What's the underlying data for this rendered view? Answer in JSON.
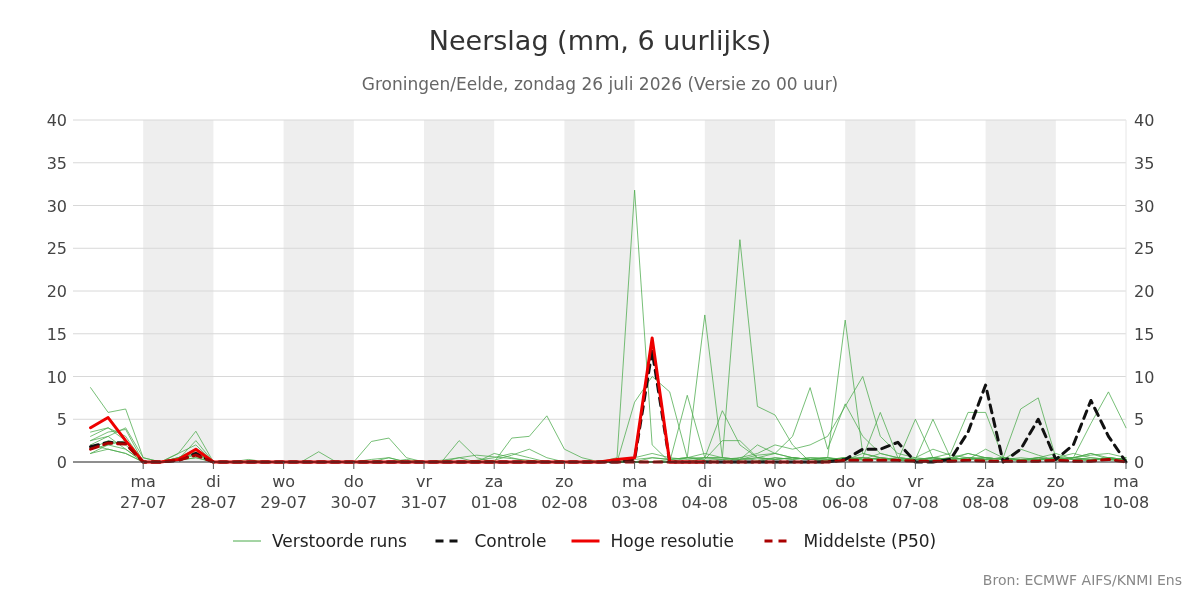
{
  "chart_data": {
    "type": "line",
    "title": "Neerslag (mm, 6 uurlijks)",
    "subtitle": "Groningen/Eelde, zondag 26 juli 2026 (Versie zo 00 uur)",
    "x": [
      "2026-07-26T06:00",
      "2026-07-26T12:00",
      "2026-07-26T18:00",
      "2026-07-27T00:00",
      "2026-07-27T06:00",
      "2026-07-27T12:00",
      "2026-07-27T18:00",
      "2026-07-28T00:00",
      "2026-07-28T06:00",
      "2026-07-28T12:00",
      "2026-07-28T18:00",
      "2026-07-29T00:00",
      "2026-07-29T06:00",
      "2026-07-29T12:00",
      "2026-07-29T18:00",
      "2026-07-30T00:00",
      "2026-07-30T06:00",
      "2026-07-30T12:00",
      "2026-07-30T18:00",
      "2026-07-31T00:00",
      "2026-07-31T06:00",
      "2026-07-31T12:00",
      "2026-07-31T18:00",
      "2026-08-01T00:00",
      "2026-08-01T06:00",
      "2026-08-01T12:00",
      "2026-08-01T18:00",
      "2026-08-02T00:00",
      "2026-08-02T06:00",
      "2026-08-02T12:00",
      "2026-08-02T18:00",
      "2026-08-03T00:00",
      "2026-08-03T06:00",
      "2026-08-03T12:00",
      "2026-08-03T18:00",
      "2026-08-04T00:00",
      "2026-08-04T06:00",
      "2026-08-04T12:00",
      "2026-08-04T18:00",
      "2026-08-05T00:00",
      "2026-08-05T06:00",
      "2026-08-05T12:00",
      "2026-08-05T18:00",
      "2026-08-06T00:00",
      "2026-08-06T06:00",
      "2026-08-06T12:00",
      "2026-08-06T18:00",
      "2026-08-07T00:00",
      "2026-08-07T06:00",
      "2026-08-07T12:00",
      "2026-08-07T18:00",
      "2026-08-08T00:00",
      "2026-08-08T06:00",
      "2026-08-08T12:00",
      "2026-08-08T18:00",
      "2026-08-09T00:00",
      "2026-08-09T06:00",
      "2026-08-09T12:00",
      "2026-08-09T18:00",
      "2026-08-10T00:00"
    ],
    "series": [
      {
        "name": "Verstoorde runs",
        "color": "#4aaa4a",
        "line_style": "solid",
        "values": [
          2.5,
          3,
          1.5,
          0,
          0,
          0.5,
          1,
          0,
          0,
          0,
          0,
          0,
          0,
          0,
          0,
          0,
          0.3,
          0.5,
          0,
          0,
          0.2,
          0.5,
          0.8,
          0.6,
          0.4,
          0.2,
          0,
          0,
          0,
          0,
          0.5,
          31.8,
          2,
          0,
          0.5,
          1,
          0.5,
          0.3,
          0.8,
          1,
          0.5,
          0.3,
          0.5,
          0.2,
          1,
          0.5,
          0.3,
          0.2,
          0.5,
          0.3,
          1,
          0.5,
          0.3,
          1.5,
          0.8,
          0.2,
          0.5,
          0.8,
          1,
          0.5
        ]
      },
      {
        "color": "#4aaa4a",
        "line_style": "solid",
        "values": [
          1.5,
          2.5,
          2,
          0,
          0,
          0.3,
          0.8,
          0,
          0,
          0,
          0,
          0,
          0,
          0,
          0,
          0,
          0,
          0,
          0.3,
          0,
          0,
          0.5,
          0,
          1,
          0.5,
          0,
          0,
          0,
          0,
          0,
          0,
          0.3,
          0.5,
          0.3,
          0.5,
          0.5,
          0.5,
          26,
          6.5,
          5.5,
          2,
          0,
          0.3,
          0.5,
          0.2,
          0.5,
          0.3,
          0,
          0.2,
          0.5,
          0.3,
          1.5,
          0.5,
          0.2,
          0.5,
          0.3,
          0.5,
          1,
          0.3,
          0
        ]
      },
      {
        "color": "#4aaa4a",
        "line_style": "solid",
        "values": [
          3,
          4,
          2.5,
          0,
          0,
          1,
          2,
          0,
          0,
          0,
          0,
          0,
          0,
          0,
          0,
          0,
          0,
          0.5,
          0,
          0,
          0,
          0,
          0,
          0.2,
          0.8,
          1.5,
          0.5,
          0,
          0,
          0,
          0,
          0,
          0,
          0.3,
          0.5,
          17.2,
          0.5,
          0.3,
          2,
          1,
          0.5,
          0.3,
          0.2,
          0.5,
          0.5,
          0.3,
          0.2,
          0,
          0.5,
          0.3,
          0.5,
          0.5,
          0.3,
          0.2,
          0.5,
          1,
          0.3,
          0.5,
          0.3,
          0.2
        ]
      },
      {
        "color": "#4aaa4a",
        "line_style": "solid",
        "values": [
          2,
          1.5,
          1,
          0,
          0,
          0.5,
          1.5,
          0,
          0,
          0,
          0,
          0,
          0,
          0,
          0,
          0,
          0,
          0,
          0,
          0,
          0,
          0,
          0,
          0,
          0,
          0,
          0,
          0,
          0,
          0,
          0,
          0,
          0.5,
          0.3,
          0.5,
          0.2,
          0.3,
          0.5,
          0.2,
          0.5,
          0.3,
          0.5,
          0.5,
          16.6,
          1,
          0.5,
          0.3,
          0.5,
          1.5,
          0.8,
          0.5,
          0.3,
          0.5,
          0.2,
          0.3,
          0.5,
          1,
          0.5,
          0.3,
          0.2
        ]
      },
      {
        "color": "#4aaa4a",
        "line_style": "solid",
        "values": [
          3.5,
          4,
          3,
          0,
          0,
          0.5,
          1.2,
          0,
          0,
          0,
          0,
          0,
          0,
          0,
          0,
          0,
          0,
          0,
          0,
          0,
          0,
          0,
          0,
          0,
          0,
          0,
          0,
          0,
          0,
          0,
          0,
          0,
          0,
          0,
          0,
          0,
          0,
          0.5,
          1,
          2,
          1.5,
          2,
          3,
          6.5,
          10,
          3,
          1,
          0.5,
          0.3,
          0.5,
          1,
          0.5,
          0.3,
          0.5,
          0.3,
          0.2,
          0.5,
          1,
          0.5,
          0.3
        ]
      },
      {
        "color": "#4aaa4a",
        "line_style": "solid",
        "values": [
          1,
          2,
          1.5,
          0,
          0,
          0.2,
          0.5,
          0,
          0,
          0,
          0,
          0,
          0,
          0,
          0,
          0,
          0,
          0,
          0,
          0,
          0,
          0,
          0,
          0,
          0,
          0,
          0,
          0,
          0,
          0,
          0,
          7,
          10,
          8.2,
          0.5,
          0.3,
          2.5,
          2.5,
          0.5,
          0.3,
          0.5,
          0.3,
          0.2,
          0.5,
          0.3,
          0.5,
          0.2,
          0.3,
          0.2,
          0.5,
          0.3,
          0.2,
          0.5,
          0.3,
          0.2,
          0.5,
          0.3,
          0.2,
          0.5,
          0.2
        ]
      },
      {
        "color": "#4aaa4a",
        "line_style": "solid",
        "values": [
          8.7,
          5.8,
          6.2,
          0.5,
          0,
          0.3,
          1,
          0,
          0,
          0,
          0,
          0,
          0,
          0,
          0,
          0,
          0,
          0,
          0,
          0,
          0,
          0,
          0.2,
          0.5,
          1,
          0.5,
          0,
          0,
          0,
          0,
          0,
          0,
          0,
          0,
          0,
          0.5,
          0.3,
          0.2,
          0.5,
          1,
          3,
          8.7,
          1.5,
          6.8,
          3,
          1,
          0.5,
          0.3,
          0.5,
          0.3,
          0.5,
          0.3,
          0.5,
          0.2,
          0.3,
          0.5,
          0.3,
          0.2,
          0.5,
          0.3
        ]
      },
      {
        "color": "#4aaa4a",
        "line_style": "solid",
        "values": [
          2.5,
          3.5,
          3.8,
          0,
          0,
          0.5,
          1.5,
          0,
          0,
          0,
          0,
          0,
          0,
          0,
          0,
          0,
          0,
          0,
          0,
          0,
          0,
          0,
          0,
          0,
          0,
          0,
          0,
          0,
          0,
          0,
          0,
          0,
          0,
          0,
          0,
          0,
          0,
          0,
          0,
          0.5,
          0.3,
          0.5,
          0.3,
          0.5,
          0.3,
          1,
          0.5,
          0.3,
          0.5,
          1,
          5.8,
          5.8,
          0.5,
          6.2,
          7.5,
          0.5,
          0.5,
          4.5,
          8.2,
          4
        ]
      },
      {
        "color": "#4aaa4a",
        "line_style": "solid",
        "values": [
          2,
          3,
          4,
          0.5,
          0,
          1,
          3.6,
          0,
          0,
          0.3,
          0,
          0,
          0,
          1.2,
          0,
          0,
          2.4,
          2.8,
          0.5,
          0,
          0,
          2.5,
          0.5,
          0,
          2.8,
          3,
          5.4,
          1.5,
          0.5,
          0,
          0,
          0.5,
          1,
          0.5,
          0.3,
          0.5,
          0.5,
          0.3,
          0.5,
          0.3,
          0.5,
          0.3,
          0.5,
          0.2,
          0.5,
          0.3,
          0.5,
          0.3,
          0.5,
          0.2,
          0.3,
          0.5,
          0.3,
          0.2,
          0.5,
          0.3,
          0.5,
          0.3,
          0.2,
          0.5
        ]
      },
      {
        "color": "#4aaa4a",
        "line_style": "solid",
        "values": [
          1.5,
          2,
          2.5,
          0,
          0,
          0.3,
          2.5,
          0,
          0,
          0,
          0,
          0,
          0,
          0,
          0,
          0,
          0,
          0,
          0,
          0,
          0,
          0,
          0,
          0,
          0,
          0,
          0,
          0,
          0,
          0,
          0,
          0,
          0,
          0,
          7.8,
          0.5,
          6,
          2,
          0.5,
          0.3,
          0.5,
          0.3,
          0.5,
          0.3,
          0.5,
          0.3,
          0.2,
          5,
          0.5,
          0.3,
          0.5,
          0.3,
          0.5,
          0.2,
          0.3,
          0.5,
          0.3,
          0.2,
          0.5,
          0.3
        ]
      },
      {
        "color": "#4aaa4a",
        "line_style": "solid",
        "values": [
          1,
          1.5,
          1,
          0,
          0,
          0.2,
          0.5,
          0,
          null,
          null,
          null,
          null,
          null,
          null,
          null,
          null,
          null,
          null,
          null,
          null,
          null,
          null,
          null,
          null,
          null,
          null,
          null,
          null,
          null,
          null,
          null,
          null,
          null,
          null,
          null,
          null,
          null,
          null,
          null,
          null,
          null,
          null,
          0,
          0.3,
          0.5,
          5.8,
          0.5,
          0.3,
          5,
          0.5,
          0.3,
          0.5,
          0.3,
          0.3,
          0.5,
          0.3,
          0.5,
          0.3,
          0.5,
          0.3
        ]
      },
      {
        "name": "Controle",
        "color": "#111111",
        "line_style": "dashed",
        "values": [
          1.8,
          2.3,
          2.2,
          0,
          0,
          0.2,
          1,
          0,
          0,
          0,
          0,
          0,
          0,
          0,
          0,
          0,
          0,
          0,
          0,
          0,
          0,
          0,
          0,
          0,
          0,
          0,
          0,
          0,
          0,
          0,
          0,
          0.3,
          13,
          0,
          0,
          0,
          0,
          0,
          0,
          0,
          0,
          0,
          0,
          0.3,
          1.5,
          1.5,
          2.3,
          0,
          0,
          0.3,
          3.5,
          9,
          0,
          1.5,
          5,
          0.3,
          2,
          7.2,
          3,
          0
        ]
      },
      {
        "name": "Hoge resolutie",
        "color": "#ee0000",
        "line_style": "solid",
        "values": [
          4,
          5.2,
          2.5,
          0,
          0,
          0.3,
          1.5,
          0,
          0,
          0,
          0,
          0,
          0,
          0,
          0,
          0,
          0,
          0,
          0,
          0,
          0,
          0,
          0,
          0,
          0,
          0,
          0,
          0,
          0,
          0,
          0.3,
          0.5,
          14.5,
          0,
          0,
          0,
          null,
          null,
          null,
          null,
          null,
          null,
          null,
          null,
          null,
          null,
          null,
          null,
          null,
          null,
          null,
          null,
          null,
          null,
          null,
          null,
          null,
          null,
          null,
          null
        ]
      },
      {
        "name": "Middelste (P50)",
        "color": "#aa0000",
        "line_style": "dashed",
        "values": [
          1.5,
          2.2,
          2.1,
          0,
          0,
          0.2,
          0.8,
          0,
          0,
          0,
          0,
          0,
          0,
          0,
          0,
          0,
          0,
          0,
          0,
          0,
          0,
          0,
          0,
          0,
          0,
          0,
          0,
          0,
          0,
          0,
          0,
          0,
          0,
          0,
          0,
          0,
          0,
          0,
          0,
          0,
          0,
          0,
          0,
          0.2,
          0.2,
          0.2,
          0.2,
          0.1,
          0.1,
          0.1,
          0.2,
          0.1,
          0.1,
          0.1,
          0.1,
          0.2,
          0.1,
          0.1,
          0.3,
          0
        ]
      }
    ],
    "xlim": [
      "2026-07-26T00:00",
      "2026-08-10T00:00"
    ],
    "xticks": [
      {
        "value": "2026-07-27",
        "label": "ma\n27-07"
      },
      {
        "value": "2026-07-28",
        "label": "di\n28-07"
      },
      {
        "value": "2026-07-29",
        "label": "wo\n29-07"
      },
      {
        "value": "2026-07-30",
        "label": "do\n30-07"
      },
      {
        "value": "2026-07-31",
        "label": "vr\n31-07"
      },
      {
        "value": "2026-08-01",
        "label": "za\n01-08"
      },
      {
        "value": "2026-08-02",
        "label": "zo\n02-08"
      },
      {
        "value": "2026-08-03",
        "label": "ma\n03-08"
      },
      {
        "value": "2026-08-04",
        "label": "di\n04-08"
      },
      {
        "value": "2026-08-05",
        "label": "wo\n05-08"
      },
      {
        "value": "2026-08-06",
        "label": "do\n06-08"
      },
      {
        "value": "2026-08-07",
        "label": "vr\n07-08"
      },
      {
        "value": "2026-08-08",
        "label": "za\n08-08"
      },
      {
        "value": "2026-08-09",
        "label": "zo\n09-08"
      },
      {
        "value": "2026-08-10",
        "label": "ma\n10-08"
      }
    ],
    "ylim": [
      0,
      40
    ],
    "yticks": [
      0,
      5,
      10,
      15,
      20,
      25,
      30,
      35,
      40
    ],
    "y2lim": [
      0,
      40
    ],
    "y2ticks": [
      0,
      5,
      10,
      15,
      20,
      25,
      30,
      35,
      40
    ],
    "grid": "y",
    "legend": "bottom",
    "bands": [
      {
        "axis": "x",
        "from": "2026-07-27",
        "to": "2026-07-28",
        "color": "#eeeeee"
      },
      {
        "axis": "x",
        "from": "2026-07-29",
        "to": "2026-07-30",
        "color": "#eeeeee"
      },
      {
        "axis": "x",
        "from": "2026-07-31",
        "to": "2026-08-01",
        "color": "#eeeeee"
      },
      {
        "axis": "x",
        "from": "2026-08-02",
        "to": "2026-08-03",
        "color": "#eeeeee"
      },
      {
        "axis": "x",
        "from": "2026-08-04",
        "to": "2026-08-05",
        "color": "#eeeeee"
      },
      {
        "axis": "x",
        "from": "2026-08-06",
        "to": "2026-08-07",
        "color": "#eeeeee"
      },
      {
        "axis": "x",
        "from": "2026-08-08",
        "to": "2026-08-09",
        "color": "#eeeeee"
      }
    ],
    "annotations": [
      "Bron: ECMWF AIFS/KNMI Ens"
    ]
  }
}
